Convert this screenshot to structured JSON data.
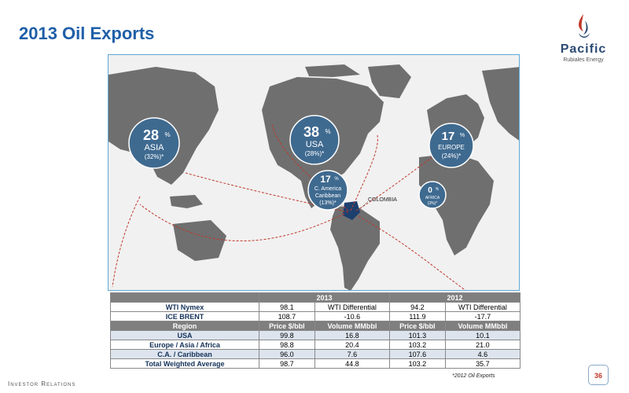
{
  "page": {
    "title": "2013 Oil Exports",
    "footer_label": "Investor Relations",
    "page_number": "36",
    "footnote": "*2012 Oil Exports"
  },
  "logo": {
    "name": "Pacific",
    "subtitle": "Rubiales Energy"
  },
  "map": {
    "origin_label": "COLOMBIA",
    "bubbles": {
      "asia": {
        "pct": "28",
        "unit": "%",
        "name": "ASIA",
        "prev": "(32%)*"
      },
      "usa": {
        "pct": "38",
        "unit": "%",
        "name": "USA",
        "prev": "(28%)*"
      },
      "europe": {
        "pct": "17",
        "unit": "%",
        "name": "EUROPE",
        "prev": "(24%)*"
      },
      "caribbean": {
        "pct": "17",
        "unit": "%",
        "name1": "C. America",
        "name2": "Caribbean",
        "prev": "(13%)*"
      },
      "africa": {
        "pct": "0",
        "unit": "%",
        "name": "AFRICA",
        "prev": "(3%)*"
      }
    }
  },
  "table": {
    "year_2013": "2013",
    "year_2012": "2012",
    "wti_differential_label": "WTI Differential",
    "benchmarks": [
      {
        "label": "WTI Nymex",
        "price_2013": "98.1",
        "price_2012": "94.2"
      },
      {
        "label": "ICE BRENT",
        "price_2013": "108.7",
        "diff_2013": "-10.6",
        "price_2012": "111.9",
        "diff_2012": "-17.7"
      }
    ],
    "columns": {
      "region": "Region",
      "price": "Price $/bbl",
      "volume": "Volume MMbbl"
    },
    "rows": [
      {
        "region": "USA",
        "price_2013": "99.8",
        "volume_2013": "16.8",
        "price_2012": "101.3",
        "volume_2012": "10.1"
      },
      {
        "region": "Europe / Asia / Africa",
        "price_2013": "98.8",
        "volume_2013": "20.4",
        "price_2012": "103.2",
        "volume_2012": "21.0"
      },
      {
        "region": "C.A. / Caribbean",
        "price_2013": "96.0",
        "volume_2013": "7.6",
        "price_2012": "107.6",
        "volume_2012": "4.6"
      },
      {
        "region": "Total Weighted Average",
        "price_2013": "98.7",
        "volume_2013": "44.8",
        "price_2012": "103.2",
        "volume_2012": "35.7"
      }
    ]
  },
  "colors": {
    "title": "#1f5fa8",
    "bubble": "#3f6a90",
    "colombia": "#1d3f6e",
    "arrow": "#c0392b",
    "land": "#6f6f6f"
  }
}
